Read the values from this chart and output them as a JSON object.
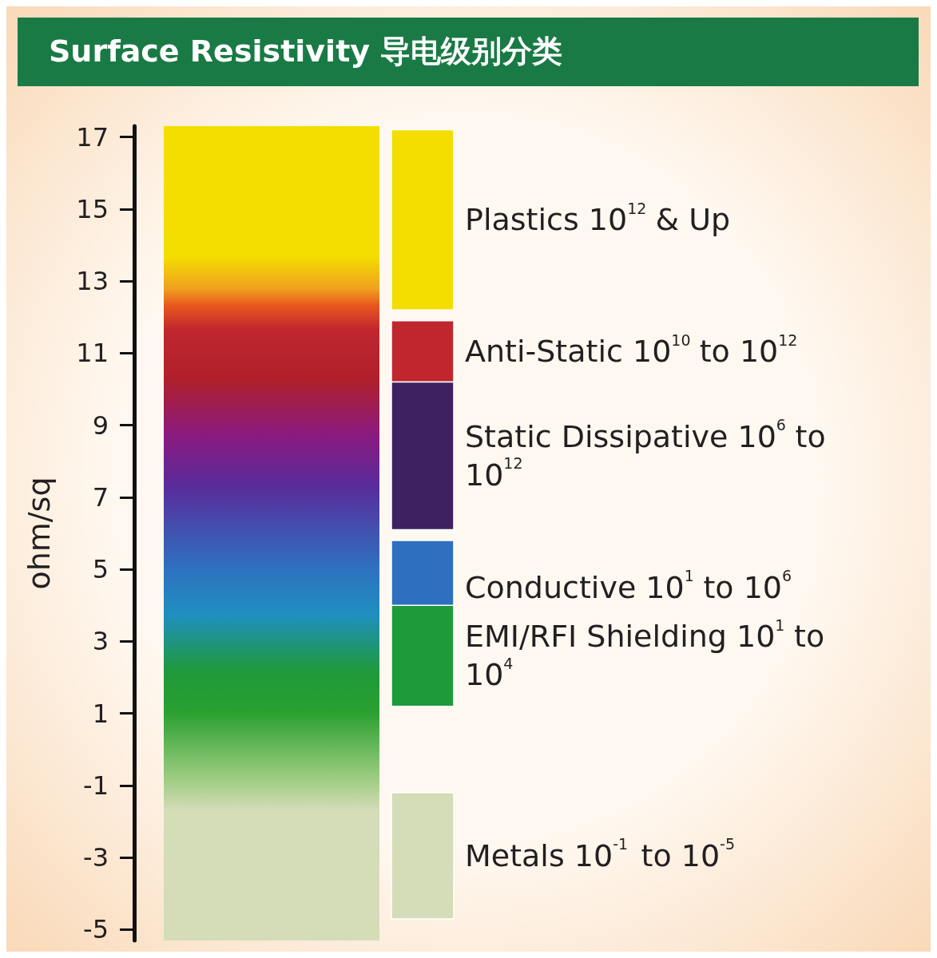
{
  "chart_data": {
    "type": "bar",
    "title": "Surface Resistivity 导电级别分类",
    "ylabel": "ohm/sq",
    "categories": [
      null
    ],
    "series": [
      {
        "name": "Plastics 10$^{12}$ & Up",
        "color": "#f3de00",
        "base": [
          12.2
        ],
        "values": [
          5.0
        ]
      },
      {
        "name": "Anti-Static 10$^{10}$ to 10$^{12}$",
        "color": "#c0262e",
        "base": [
          10.2
        ],
        "values": [
          1.7
        ]
      },
      {
        "name": "Static Dissipative 10$^{6}$ to 10$^{12}$",
        "color": "#3d2160",
        "base": [
          6.1
        ],
        "values": [
          4.1
        ]
      },
      {
        "name": "Conductive 10$^{1}$ to 10$^{6}$",
        "color": "#2f6fc0",
        "base": [
          3.2
        ],
        "values": [
          2.6
        ]
      },
      {
        "name": "EMI/RFI Shielding 10$^{1}$ to 10$^{4}$",
        "color": "#1f9a3a",
        "base": [
          1.2
        ],
        "values": [
          2.8
        ]
      },
      {
        "name": "Metals 10$^{-1}$ to 10$^{-5}$",
        "color": "#d4dcb8",
        "base": [
          -4.7
        ],
        "values": [
          3.5
        ]
      }
    ],
    "ylim": [
      -5.3,
      17.3
    ],
    "yticks": [
      -5,
      -3,
      -1,
      1,
      3,
      5,
      7,
      9,
      11,
      13,
      15,
      17
    ],
    "grid": false,
    "tick_labels": "y"
  }
}
